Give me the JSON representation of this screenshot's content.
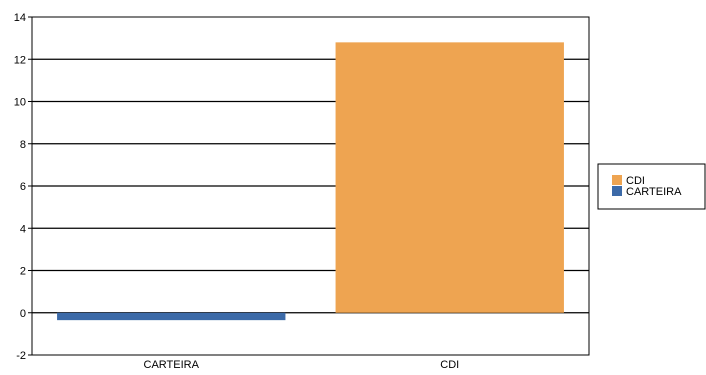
{
  "chart_data": {
    "type": "bar",
    "categories": [
      "CARTEIRA",
      "CDI"
    ],
    "series": [
      {
        "name": "CARTEIRA",
        "values": [
          -0.35,
          null
        ],
        "color": "#3c6aa8"
      },
      {
        "name": "CDI",
        "values": [
          null,
          12.8
        ],
        "color": "#eea451"
      }
    ],
    "ylim": [
      -2,
      14
    ],
    "yticks": [
      -2,
      0,
      2,
      4,
      6,
      8,
      10,
      12,
      14
    ],
    "grid": true,
    "legend": {
      "position": "right",
      "order": [
        "CDI",
        "CARTEIRA"
      ]
    },
    "title": "",
    "xlabel": "",
    "ylabel": ""
  }
}
